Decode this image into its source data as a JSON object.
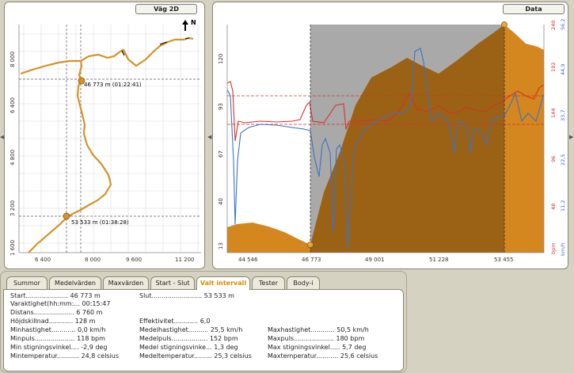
{
  "map_panel": {
    "title": "Väg 2D",
    "north_label": "N",
    "y_ticks": [
      "8 000",
      "6 400",
      "4 800",
      "3 200",
      "1 600"
    ],
    "x_ticks": [
      "6 400",
      "8 000",
      "9 600",
      "11 200"
    ],
    "marker_start_label": "46 773 m (01:22:41)",
    "marker_end_label": "53 533 m (01:38:28)"
  },
  "data_panel": {
    "title": "Data",
    "left_ticks": [
      "120",
      "93",
      "67",
      "40",
      "13"
    ],
    "x_ticks": [
      "44 546",
      "46 773",
      "49 001",
      "51 228",
      "53 455"
    ],
    "bpm_ticks": [
      "240",
      "192",
      "144",
      "96",
      "48"
    ],
    "kmh_ticks": [
      "56,2",
      "44,9",
      "33,7",
      "22,5",
      "11,2"
    ],
    "bpm_unit": "bpm",
    "kmh_unit": "km/h",
    "colors": {
      "altitude": "#d4861f",
      "altitude_dark": "#8f5a14",
      "selection": "#a9a9a9",
      "heart_rate": "#d8312a",
      "speed": "#3a73c8"
    }
  },
  "tabs": [
    {
      "label": "Summor",
      "active": false
    },
    {
      "label": "Medelvärden",
      "active": false
    },
    {
      "label": "Maxvärden",
      "active": false
    },
    {
      "label": "Start - Slut",
      "active": false
    },
    {
      "label": "Valt intervall",
      "active": true
    },
    {
      "label": "Tester",
      "active": false
    },
    {
      "label": "Body-i",
      "active": false
    }
  ],
  "stats": {
    "start": "Start..................... 46 773 m",
    "slut": "Slut......................... 53 533 m",
    "varaktighet": "Varaktighet(hh:mm:...  00:15:47",
    "distans": "Distans.................... 6 760 m",
    "hojdskillnad": "Höjdskillnad............ 128 m",
    "effektivitet": "Effektivitet............ 6,0",
    "minhastighet": "Minhastighet............ 0,0 km/h",
    "medelhastighet": "Medelhastighet.......... 25,5 km/h",
    "maxhastighet": "Maxhastighet............ 50,5 km/h",
    "minpuls": "Minpuls.................... 118 bpm",
    "medelpuls": "Medelpuls.................. 152 bpm",
    "maxpuls": "Maxpuls.................... 180 bpm",
    "min_stigning": "Min stigningsvinkel.... -2,9 deg",
    "medel_stigning": "Medel stigningsvinke... 1,3 deg",
    "max_stigning": "Max stigningsvinkel..... 5,7 deg",
    "mintemp": "Mintemperatur........... 24,8 celsius",
    "medeltemp": "Medeltemperatur......... 25,3 celsius",
    "maxtemp": "Maxtemperatur........... 25,6 celsius"
  }
}
